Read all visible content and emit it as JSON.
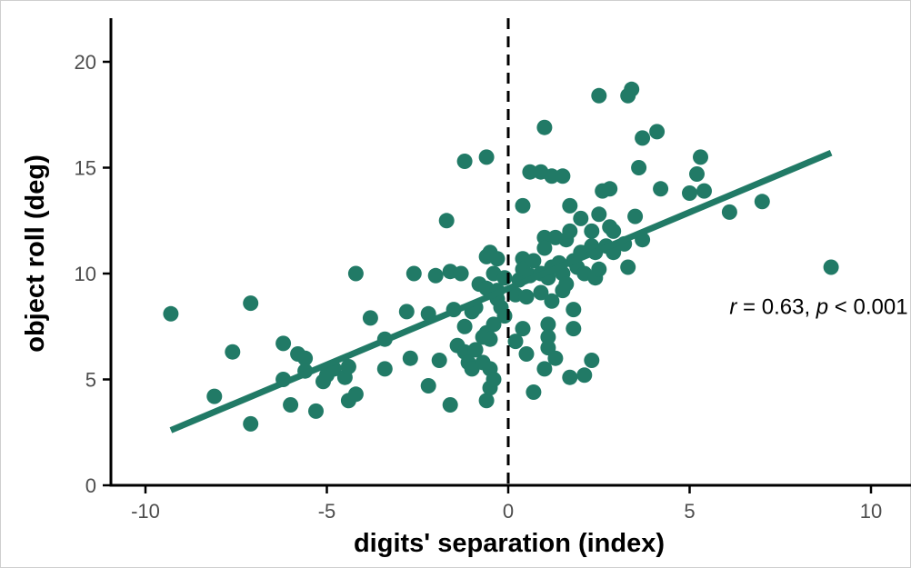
{
  "chart_data": {
    "type": "scatter",
    "xlabel": "digits' separation (index)",
    "ylabel": "object roll (deg)",
    "xlim": [
      -11,
      11
    ],
    "ylim": [
      0,
      22
    ],
    "x_ticks": [
      -10,
      -5,
      0,
      5,
      10
    ],
    "y_ticks": [
      0,
      5,
      10,
      15,
      20
    ],
    "x_tick_labels": [
      "-10",
      "-5",
      "0",
      "5",
      "10"
    ],
    "y_tick_labels": [
      "0",
      "5",
      "10",
      "15",
      "20"
    ],
    "grid": false,
    "reference_line": {
      "axis": "x",
      "value": 0,
      "style": "dashed",
      "color": "#000000"
    },
    "regression_line": {
      "x": [
        -9.3,
        8.9
      ],
      "y": [
        2.6,
        15.7
      ],
      "color": "#217a66"
    },
    "annotation": {
      "r_symbol": "r",
      "r_text": " = 0.63, ",
      "p_symbol": "p",
      "p_text": " < 0.001",
      "x": 6.1,
      "y": 8.1
    },
    "point_color": "#217a66",
    "points": [
      [
        -9.3,
        8.1
      ],
      [
        -8.1,
        4.2
      ],
      [
        -7.6,
        6.3
      ],
      [
        -7.1,
        8.6
      ],
      [
        -7.1,
        2.9
      ],
      [
        -6.2,
        6.7
      ],
      [
        -6.2,
        5.0
      ],
      [
        -6.0,
        3.8
      ],
      [
        -5.8,
        6.2
      ],
      [
        -5.6,
        6.0
      ],
      [
        -5.6,
        5.4
      ],
      [
        -5.3,
        3.5
      ],
      [
        -5.1,
        4.9
      ],
      [
        -5.0,
        5.2
      ],
      [
        -4.8,
        5.5
      ],
      [
        -4.5,
        5.1
      ],
      [
        -4.4,
        5.6
      ],
      [
        -4.4,
        4.0
      ],
      [
        -4.2,
        10.0
      ],
      [
        -4.2,
        4.3
      ],
      [
        -3.8,
        7.9
      ],
      [
        -3.4,
        6.9
      ],
      [
        -3.4,
        5.5
      ],
      [
        -2.8,
        8.2
      ],
      [
        -2.7,
        6.0
      ],
      [
        -2.6,
        10.0
      ],
      [
        -2.2,
        8.1
      ],
      [
        -2.2,
        4.7
      ],
      [
        -2.0,
        9.9
      ],
      [
        -1.9,
        5.9
      ],
      [
        -1.7,
        12.5
      ],
      [
        -1.6,
        10.1
      ],
      [
        -1.6,
        3.8
      ],
      [
        -1.5,
        8.3
      ],
      [
        -1.4,
        6.6
      ],
      [
        -1.3,
        10.0
      ],
      [
        -1.2,
        15.3
      ],
      [
        -1.2,
        7.5
      ],
      [
        -1.2,
        6.3
      ],
      [
        -1.1,
        5.8
      ],
      [
        -1.0,
        8.2
      ],
      [
        -1.0,
        5.5
      ],
      [
        -0.9,
        8.4
      ],
      [
        -0.9,
        6.4
      ],
      [
        -0.8,
        9.5
      ],
      [
        -0.7,
        7.0
      ],
      [
        -0.7,
        5.8
      ],
      [
        -0.6,
        15.5
      ],
      [
        -0.6,
        10.8
      ],
      [
        -0.6,
        9.3
      ],
      [
        -0.6,
        7.2
      ],
      [
        -0.6,
        4.0
      ],
      [
        -0.5,
        11.0
      ],
      [
        -0.5,
        6.9
      ],
      [
        -0.5,
        5.5
      ],
      [
        -0.5,
        4.6
      ],
      [
        -0.4,
        10.0
      ],
      [
        -0.4,
        7.6
      ],
      [
        -0.4,
        5.0
      ],
      [
        -0.3,
        10.7
      ],
      [
        -0.3,
        9.2
      ],
      [
        -0.3,
        8.8
      ],
      [
        -0.2,
        8.4
      ],
      [
        -0.1,
        9.8
      ],
      [
        -0.1,
        8.0
      ],
      [
        0.2,
        9.0
      ],
      [
        0.2,
        6.8
      ],
      [
        0.3,
        9.7
      ],
      [
        0.4,
        13.2
      ],
      [
        0.4,
        10.7
      ],
      [
        0.4,
        10.2
      ],
      [
        0.4,
        7.4
      ],
      [
        0.5,
        6.2
      ],
      [
        0.5,
        8.9
      ],
      [
        0.6,
        9.9
      ],
      [
        0.6,
        14.8
      ],
      [
        0.7,
        10.6
      ],
      [
        0.7,
        4.4
      ],
      [
        0.9,
        10.0
      ],
      [
        0.9,
        9.1
      ],
      [
        0.9,
        14.8
      ],
      [
        1.0,
        5.5
      ],
      [
        1.0,
        16.9
      ],
      [
        1.0,
        11.7
      ],
      [
        1.0,
        11.2
      ],
      [
        1.1,
        7.6
      ],
      [
        1.1,
        7.0
      ],
      [
        1.1,
        6.5
      ],
      [
        1.1,
        9.8
      ],
      [
        1.2,
        14.6
      ],
      [
        1.2,
        10.3
      ],
      [
        1.2,
        8.7
      ],
      [
        1.3,
        11.7
      ],
      [
        1.3,
        6.0
      ],
      [
        1.4,
        10.5
      ],
      [
        1.5,
        10.0
      ],
      [
        1.5,
        9.2
      ],
      [
        1.5,
        14.6
      ],
      [
        1.6,
        11.6
      ],
      [
        1.6,
        9.5
      ],
      [
        1.7,
        13.2
      ],
      [
        1.7,
        12.0
      ],
      [
        1.7,
        5.1
      ],
      [
        1.8,
        10.6
      ],
      [
        1.8,
        7.4
      ],
      [
        1.8,
        8.3
      ],
      [
        1.9,
        10.3
      ],
      [
        2.0,
        12.6
      ],
      [
        2.0,
        11.0
      ],
      [
        2.1,
        10.0
      ],
      [
        2.1,
        5.2
      ],
      [
        2.3,
        12.0
      ],
      [
        2.3,
        11.3
      ],
      [
        2.3,
        5.9
      ],
      [
        2.4,
        11.0
      ],
      [
        2.4,
        9.8
      ],
      [
        2.5,
        12.8
      ],
      [
        2.5,
        10.2
      ],
      [
        2.5,
        18.4
      ],
      [
        2.6,
        13.9
      ],
      [
        2.7,
        11.3
      ],
      [
        2.8,
        12.2
      ],
      [
        2.8,
        14.0
      ],
      [
        2.9,
        11.0
      ],
      [
        2.9,
        12.0
      ],
      [
        3.2,
        11.4
      ],
      [
        3.3,
        10.3
      ],
      [
        3.3,
        18.4
      ],
      [
        3.4,
        18.7
      ],
      [
        3.5,
        12.7
      ],
      [
        3.6,
        15.0
      ],
      [
        3.7,
        11.6
      ],
      [
        3.7,
        16.4
      ],
      [
        4.1,
        16.7
      ],
      [
        4.2,
        14.0
      ],
      [
        5.0,
        13.8
      ],
      [
        5.2,
        14.7
      ],
      [
        5.3,
        15.5
      ],
      [
        5.4,
        13.9
      ],
      [
        6.1,
        12.9
      ],
      [
        7.0,
        13.4
      ],
      [
        8.9,
        10.3
      ]
    ]
  }
}
